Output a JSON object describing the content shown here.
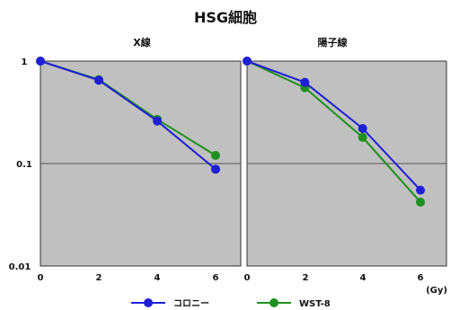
{
  "figure_title": "HSG細胞",
  "x_unit": "(Gy)",
  "colors": {
    "colony": "#1f1fd6",
    "wst8": "#1f8f1f",
    "plot_bg": "#c0c0c0",
    "grid": "#555555"
  },
  "chart_data": [
    {
      "type": "line",
      "title": "X線",
      "x": [
        0,
        2,
        4,
        6
      ],
      "xticks": [
        "0",
        "2",
        "4",
        "6"
      ],
      "yscale": "log",
      "ylim": [
        0.01,
        1
      ],
      "xlim": [
        0,
        6
      ],
      "yticks": [
        "1",
        "0.1",
        "0.01"
      ],
      "grid": "horizontal at 0.1",
      "legend": "bottom",
      "series": [
        {
          "name": "コロニー",
          "color": "#1f1fd6",
          "values": [
            1.0,
            0.65,
            0.26,
            0.088
          ]
        },
        {
          "name": "WST-8",
          "color": "#1f8f1f",
          "values": [
            1.0,
            0.66,
            0.27,
            0.12
          ]
        }
      ]
    },
    {
      "type": "line",
      "title": "陽子線",
      "x": [
        0,
        2,
        4,
        6
      ],
      "xticks": [
        "0",
        "2",
        "4",
        "6"
      ],
      "yscale": "log",
      "ylim": [
        0.01,
        1
      ],
      "xlim": [
        0,
        6
      ],
      "grid": "horizontal at 0.1",
      "legend": "bottom",
      "series": [
        {
          "name": "コロニー",
          "color": "#1f1fd6",
          "values": [
            1.0,
            0.62,
            0.22,
            0.055
          ]
        },
        {
          "name": "WST-8",
          "color": "#1f8f1f",
          "values": [
            1.0,
            0.55,
            0.18,
            0.042
          ]
        }
      ]
    }
  ]
}
